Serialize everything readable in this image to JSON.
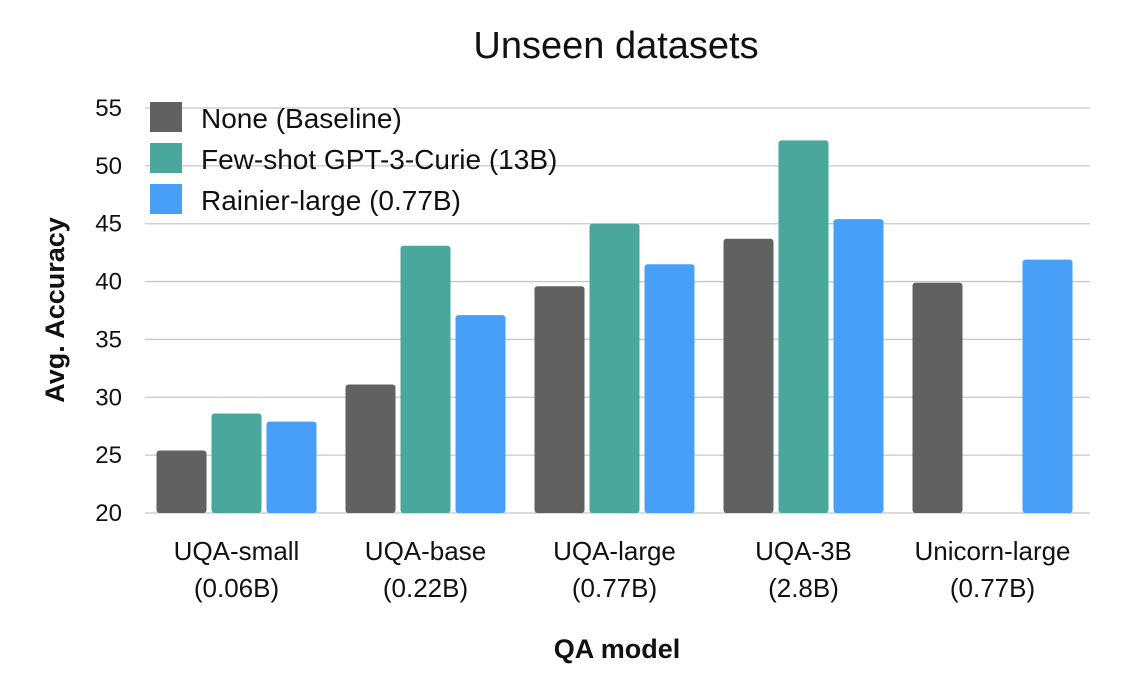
{
  "chart_data": {
    "type": "bar",
    "title": "Unseen datasets",
    "xlabel": "QA model",
    "ylabel": "Avg. Accuracy",
    "ylim": [
      20,
      55
    ],
    "yticks": [
      20,
      25,
      30,
      35,
      40,
      45,
      50,
      55
    ],
    "grid": true,
    "legend_position": "top-left",
    "categories": [
      [
        "UQA-small",
        "(0.06B)"
      ],
      [
        "UQA-base",
        "(0.22B)"
      ],
      [
        "UQA-large",
        "(0.77B)"
      ],
      [
        "UQA-3B",
        "(2.8B)"
      ],
      [
        "Unicorn-large",
        "(0.77B)"
      ]
    ],
    "series": [
      {
        "name": "None (Baseline)",
        "color": "#616161",
        "values": [
          25.4,
          31.1,
          39.6,
          43.7,
          39.9
        ]
      },
      {
        "name": "Few-shot GPT-3-Curie (13B)",
        "color": "#4aa79b",
        "values": [
          28.6,
          43.1,
          45.0,
          52.2,
          null
        ]
      },
      {
        "name": "Rainier-large (0.77B)",
        "color": "#479ff7",
        "values": [
          27.9,
          37.1,
          41.5,
          45.4,
          41.9
        ]
      }
    ]
  }
}
